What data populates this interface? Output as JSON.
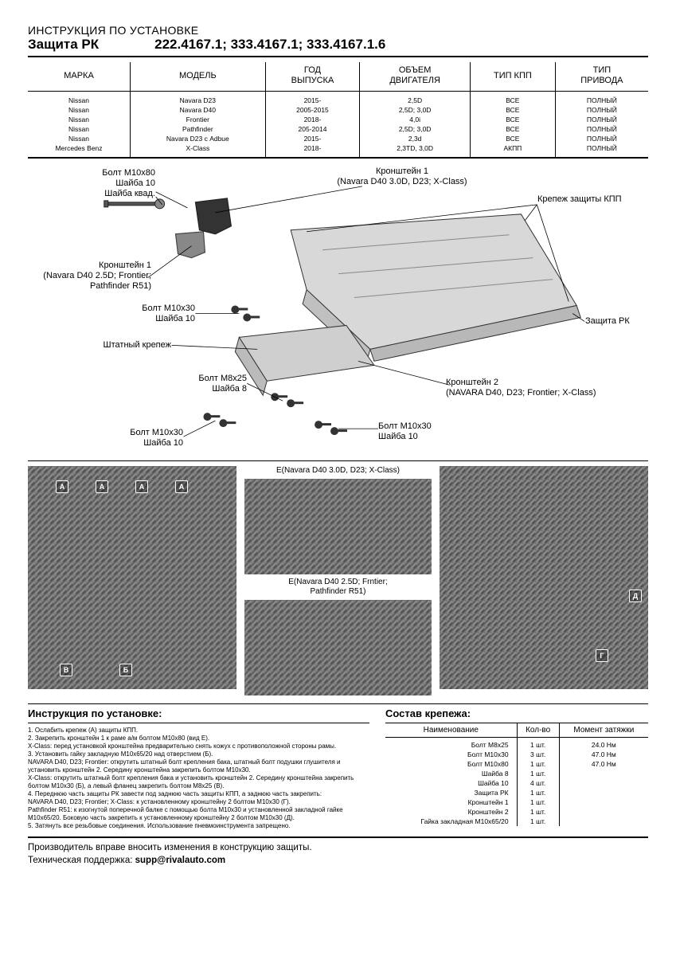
{
  "header": {
    "line1": "ИНСТРУКЦИЯ ПО УСТАНОВКЕ",
    "line2": "Защита РК",
    "codes": "222.4167.1; 333.4167.1; 333.4167.1.6"
  },
  "vehicleTable": {
    "columns": [
      "МАРКА",
      "МОДЕЛЬ",
      "ГОД\nВЫПУСКА",
      "ОБЪЕМ\nДВИГАТЕЛЯ",
      "ТИП КПП",
      "ТИП\nПРИВОДА"
    ],
    "rows": [
      [
        "Nissan",
        "Navara D23",
        "2015-",
        "2,5D",
        "ВСЕ",
        "ПОЛНЫЙ"
      ],
      [
        "Nissan",
        "Navara D40",
        "2005-2015",
        "2,5D; 3,0D",
        "ВСЕ",
        "ПОЛНЫЙ"
      ],
      [
        "Nissan",
        "Frontier",
        "2018-",
        "4,0i",
        "ВСЕ",
        "ПОЛНЫЙ"
      ],
      [
        "Nissan",
        "Pathfinder",
        "205-2014",
        "2,5D; 3,0D",
        "ВСЕ",
        "ПОЛНЫЙ"
      ],
      [
        "Nissan",
        "Navara D23 с Adbue",
        "2015-",
        "2,3d",
        "ВСЕ",
        "ПОЛНЫЙ"
      ],
      [
        "Mercedes Benz",
        "X-Class",
        "2018-",
        "2,3TD, 3,0D",
        "АКПП",
        "ПОЛНЫЙ"
      ]
    ]
  },
  "diagramLabels": {
    "l1": "Болт М10х80\nШайба 10\nШайба квад.",
    "l2": "Кронштейн 1\n(Navara D40 3.0D, D23; X-Class)",
    "l3": "Крепеж защиты КПП",
    "l4": "Кронштейн 1\n(Navara D40 2.5D; Frontier;\nPathfinder R51)",
    "l5": "Болт М10х30\nШайба 10",
    "l6": "Штатный крепеж",
    "l7": "Защита РК",
    "l8": "Болт М8х25\nШайба 8",
    "l9": "Кронштейн 2\n(NAVARA D40, D23; Frontier; X-Class)",
    "l10": "Болт М10х30\nШайба 10",
    "l11": "Болт М10х30\nШайба 10"
  },
  "photoCaptions": {
    "top": "Е(Navara D40 3.0D, D23; X-Class)",
    "mid": "Е(Navara D40 2.5D; Frntier;\nPathfinder R51)"
  },
  "markers": {
    "a": "А",
    "b": "Б",
    "v": "В",
    "g": "Г",
    "d": "Д"
  },
  "instructions": {
    "title": "Инструкция по установке:",
    "steps": [
      "1. Ослабить крепеж (А) защиты КПП.",
      "2. Закрепить кронштейн 1 к раме а/м болтом М10х80 (вид Е).",
      "X-Class: перед установкой кронштейна предварительно снять кожух с противоположной стороны рамы.",
      "3. Установить гайку закладную М10х65/20 над отверстием (Б).",
      "NAVARA D40, D23; Frontier: открутить штатный болт крепления бака, штатный болт подушки глушителя  и установить кронштейн 2. Середину кронштейна закрепить болтом М10х30.",
      "X-Class: открутить штатный болт крепления бака и установить кронштейн 2. Середину кронштейна закрепить болтом М10х30 (Б), а левый фланец закрепить болтом М8х25 (В).",
      "4. Переднюю часть защиты РК завести под заднюю часть защиты КПП, а заднюю часть закрепить:",
      "NAVARA D40, D23; Frontier; X-Class: к установленному кронштейну 2 болтом М10х30 (Г).",
      "Pathfinder R51: к изогнутой поперечной балке с помощью болта М10х30 и установленной закладной гайке М10х65/20. Боковую часть закрепить к установленному кронштейну 2 болтом М10х30 (Д).",
      "5. Затянуть все резьбовые соединения. Использование пневмоинструмента запрещено."
    ]
  },
  "parts": {
    "title": "Состав крепежа:",
    "columns": [
      "Наименование",
      "Кол-во",
      "Момент затяжки"
    ],
    "rows": [
      [
        "Болт М8х25",
        "1 шт.",
        "24.0 Нм"
      ],
      [
        "Болт М10х30",
        "3 шт.",
        "47.0 Нм"
      ],
      [
        "Болт М10х80",
        "1 шт.",
        "47.0 Нм"
      ],
      [
        "Шайба 8",
        "1 шт.",
        ""
      ],
      [
        "Шайба 10",
        "4 шт.",
        ""
      ],
      [
        "Защита РК",
        "1 шт.",
        ""
      ],
      [
        "Кронштейн 1",
        "1 шт.",
        ""
      ],
      [
        "Кронштейн 2",
        "1 шт.",
        ""
      ],
      [
        "Гайка закладная М10х65/20",
        "1 шт.",
        ""
      ]
    ]
  },
  "footer": {
    "line1": "Производитель вправе вносить изменения в конструкцию защиты.",
    "line2a": "Техническая поддержка: ",
    "line2b": "supp@rivalauto.com"
  }
}
